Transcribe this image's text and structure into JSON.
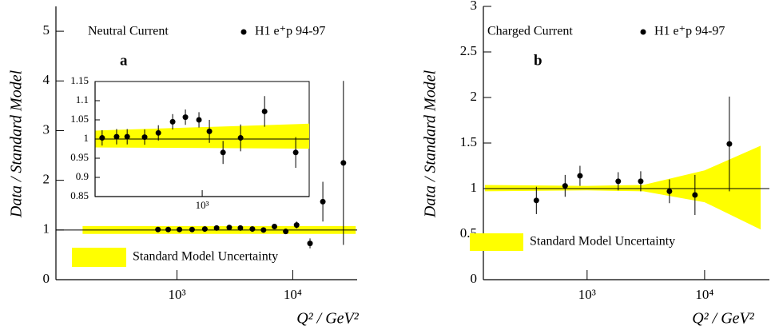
{
  "chart_data": [
    {
      "type": "scatter",
      "title": "Neutral Current",
      "label": "a",
      "x_label": "Q² / GeV²",
      "y_label": "Data / Standard Model",
      "log_x": true,
      "xlim": [
        90,
        36000
      ],
      "ylim": [
        0,
        5.5
      ],
      "xticks": [
        {
          "value": 1000,
          "label": "10³"
        },
        {
          "value": 10000,
          "label": "10⁴"
        }
      ],
      "yticks": [
        0,
        1,
        2,
        3,
        4,
        5
      ],
      "hline": 1,
      "band": {
        "name": "Standard Model Uncertainty",
        "color": "#ffff00",
        "x": [
          153,
          35000
        ],
        "lower": [
          0.92,
          0.92
        ],
        "upper": [
          1.08,
          1.08
        ]
      },
      "series": [
        {
          "name": "H1 e⁺p 94-97",
          "color": "#000000",
          "x": [
            685,
            840,
            1050,
            1350,
            1740,
            2200,
            2830,
            3530,
            4480,
            5590,
            6950,
            8700,
            10800,
            14100,
            18200,
            27400
          ],
          "values": [
            1.01,
            1.01,
            1.01,
            1.01,
            1.02,
            1.04,
            1.05,
            1.04,
            1.02,
            1.0,
            1.07,
            0.97,
            1.1,
            0.73,
            1.57,
            2.35
          ],
          "errors": [
            0.01,
            0.01,
            0.01,
            0.01,
            0.01,
            0.02,
            0.02,
            0.02,
            0.02,
            0.03,
            0.03,
            0.04,
            0.07,
            0.1,
            0.4,
            1.65
          ]
        }
      ]
    },
    {
      "type": "scatter",
      "log_x": true,
      "xlim": [
        217,
        4600
      ],
      "ylim": [
        0.85,
        1.15
      ],
      "xticks": [
        {
          "value": 1000,
          "label": "10³"
        }
      ],
      "yticks": [
        0.85,
        0.9,
        0.95,
        1,
        1.05,
        1.1,
        1.15
      ],
      "hline": 1,
      "band": {
        "color": "#ffff00",
        "x": [
          217,
          4600
        ],
        "lower": [
          0.978,
          0.975
        ],
        "upper": [
          1.022,
          1.04
        ]
      },
      "series": [
        {
          "color": "#000000",
          "x": [
            240,
            295,
            343,
            440,
            535,
            656,
            787,
            955,
            1108,
            1346,
            1729,
            2435,
            3795
          ],
          "values": [
            1.003,
            1.006,
            1.006,
            1.005,
            1.016,
            1.045,
            1.057,
            1.05,
            1.02,
            0.965,
            1.003,
            1.072,
            0.965
          ],
          "errors": [
            0.02,
            0.02,
            0.02,
            0.02,
            0.02,
            0.02,
            0.02,
            0.02,
            0.03,
            0.03,
            0.035,
            0.04,
            0.04
          ]
        }
      ]
    },
    {
      "type": "scatter",
      "title": "Charged Current",
      "label": "b",
      "x_label": "Q² / GeV²",
      "y_label": "Data / Standard Model",
      "log_x": true,
      "xlim": [
        131,
        35600
      ],
      "ylim": [
        0,
        3
      ],
      "xticks": [
        {
          "value": 1000,
          "label": "10³"
        },
        {
          "value": 10000,
          "label": "10⁴"
        }
      ],
      "yticks": [
        0,
        0.5,
        1,
        1.5,
        2,
        2.5,
        3
      ],
      "hline": 1,
      "band": {
        "name": "Standard Model Uncertainty",
        "color": "#ffff00",
        "x": [
          135,
          1000,
          3000,
          10000,
          30000
        ],
        "lower": [
          0.97,
          0.98,
          0.97,
          0.85,
          0.55
        ],
        "upper": [
          1.04,
          1.03,
          1.04,
          1.2,
          1.47
        ]
      },
      "series": [
        {
          "name": "H1 e⁺p 94-97",
          "color": "#000000",
          "x": [
            370,
            650,
            870,
            1840,
            2860,
            5020,
            8280,
            16250
          ],
          "values": [
            0.87,
            1.03,
            1.14,
            1.08,
            1.08,
            0.97,
            0.93,
            1.49
          ],
          "errors": [
            0.15,
            0.12,
            0.11,
            0.1,
            0.11,
            0.13,
            0.22,
            0.52
          ]
        }
      ]
    }
  ]
}
